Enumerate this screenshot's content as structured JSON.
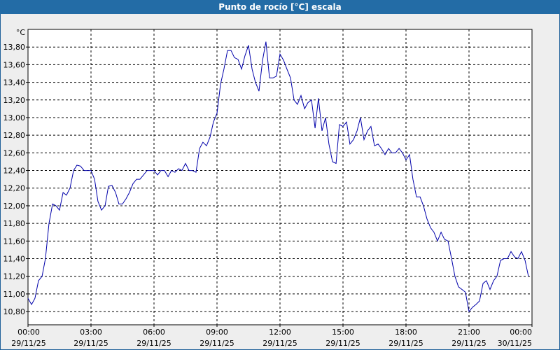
{
  "window": {
    "title": "Punto de rocío [°C] escala"
  },
  "colors": {
    "title_bar": "#236ca6",
    "line": "#0000aa",
    "grid": "#000000",
    "background": "#eeeeee"
  },
  "chart_data": {
    "type": "line",
    "title": "Punto de rocío [°C] escala",
    "ylabel": "°C",
    "xlabel": "",
    "grid": true,
    "ylim": [
      10.65,
      14.0
    ],
    "xlim": [
      0,
      24
    ],
    "y_ticks": [
      "10,80",
      "11,00",
      "11,20",
      "11,40",
      "11,60",
      "11,80",
      "12,00",
      "12,20",
      "12,40",
      "12,60",
      "12,80",
      "13,00",
      "13,20",
      "13,40",
      "13,60",
      "13,80"
    ],
    "x_ticks": [
      {
        "time": "00:00",
        "date": "29/11/25",
        "h": 0
      },
      {
        "time": "03:00",
        "date": "29/11/25",
        "h": 3
      },
      {
        "time": "06:00",
        "date": "29/11/25",
        "h": 6
      },
      {
        "time": "09:00",
        "date": "29/11/25",
        "h": 9
      },
      {
        "time": "12:00",
        "date": "29/11/25",
        "h": 12
      },
      {
        "time": "15:00",
        "date": "29/11/25",
        "h": 15
      },
      {
        "time": "18:00",
        "date": "29/11/25",
        "h": 18
      },
      {
        "time": "21:00",
        "date": "29/11/25",
        "h": 21
      },
      {
        "time": "00:00",
        "date": "30/11/25",
        "h": 24
      }
    ],
    "series": [
      {
        "values": [
          [
            0.0,
            10.95
          ],
          [
            0.17,
            10.88
          ],
          [
            0.33,
            10.95
          ],
          [
            0.5,
            11.15
          ],
          [
            0.67,
            11.2
          ],
          [
            0.83,
            11.4
          ],
          [
            1.0,
            11.8
          ],
          [
            1.17,
            12.02
          ],
          [
            1.33,
            12.0
          ],
          [
            1.5,
            11.95
          ],
          [
            1.67,
            12.15
          ],
          [
            1.83,
            12.12
          ],
          [
            2.0,
            12.2
          ],
          [
            2.17,
            12.4
          ],
          [
            2.33,
            12.46
          ],
          [
            2.5,
            12.45
          ],
          [
            2.67,
            12.4
          ],
          [
            2.83,
            12.4
          ],
          [
            3.0,
            12.4
          ],
          [
            3.17,
            12.3
          ],
          [
            3.33,
            12.05
          ],
          [
            3.5,
            11.95
          ],
          [
            3.67,
            12.0
          ],
          [
            3.83,
            12.22
          ],
          [
            4.0,
            12.23
          ],
          [
            4.17,
            12.15
          ],
          [
            4.33,
            12.02
          ],
          [
            4.5,
            12.02
          ],
          [
            4.67,
            12.08
          ],
          [
            4.83,
            12.15
          ],
          [
            5.0,
            12.25
          ],
          [
            5.17,
            12.3
          ],
          [
            5.33,
            12.3
          ],
          [
            5.5,
            12.35
          ],
          [
            5.67,
            12.4
          ],
          [
            5.83,
            12.4
          ],
          [
            6.0,
            12.4
          ],
          [
            6.17,
            12.35
          ],
          [
            6.33,
            12.4
          ],
          [
            6.5,
            12.4
          ],
          [
            6.67,
            12.33
          ],
          [
            6.83,
            12.4
          ],
          [
            7.0,
            12.38
          ],
          [
            7.17,
            12.42
          ],
          [
            7.33,
            12.4
          ],
          [
            7.5,
            12.48
          ],
          [
            7.67,
            12.4
          ],
          [
            7.83,
            12.4
          ],
          [
            8.0,
            12.38
          ],
          [
            8.17,
            12.65
          ],
          [
            8.33,
            12.72
          ],
          [
            8.5,
            12.68
          ],
          [
            8.67,
            12.78
          ],
          [
            8.83,
            12.95
          ],
          [
            9.0,
            13.05
          ],
          [
            9.17,
            13.38
          ],
          [
            9.33,
            13.55
          ],
          [
            9.5,
            13.76
          ],
          [
            9.67,
            13.76
          ],
          [
            9.83,
            13.68
          ],
          [
            10.0,
            13.66
          ],
          [
            10.17,
            13.55
          ],
          [
            10.33,
            13.7
          ],
          [
            10.5,
            13.82
          ],
          [
            10.67,
            13.55
          ],
          [
            10.83,
            13.4
          ],
          [
            11.0,
            13.3
          ],
          [
            11.17,
            13.65
          ],
          [
            11.33,
            13.86
          ],
          [
            11.5,
            13.45
          ],
          [
            11.67,
            13.45
          ],
          [
            11.83,
            13.47
          ],
          [
            12.0,
            13.72
          ],
          [
            12.17,
            13.65
          ],
          [
            12.33,
            13.55
          ],
          [
            12.5,
            13.45
          ],
          [
            12.67,
            13.2
          ],
          [
            12.83,
            13.15
          ],
          [
            13.0,
            13.25
          ],
          [
            13.17,
            13.1
          ],
          [
            13.33,
            13.17
          ],
          [
            13.5,
            13.2
          ],
          [
            13.67,
            12.88
          ],
          [
            13.83,
            13.22
          ],
          [
            14.0,
            12.85
          ],
          [
            14.17,
            13.0
          ],
          [
            14.33,
            12.7
          ],
          [
            14.5,
            12.5
          ],
          [
            14.67,
            12.48
          ],
          [
            14.83,
            12.92
          ],
          [
            15.0,
            12.9
          ],
          [
            15.17,
            12.95
          ],
          [
            15.33,
            12.7
          ],
          [
            15.5,
            12.75
          ],
          [
            15.67,
            12.85
          ],
          [
            15.83,
            13.0
          ],
          [
            16.0,
            12.75
          ],
          [
            16.17,
            12.85
          ],
          [
            16.33,
            12.9
          ],
          [
            16.5,
            12.68
          ],
          [
            16.67,
            12.7
          ],
          [
            16.83,
            12.65
          ],
          [
            17.0,
            12.58
          ],
          [
            17.17,
            12.65
          ],
          [
            17.33,
            12.6
          ],
          [
            17.5,
            12.6
          ],
          [
            17.67,
            12.65
          ],
          [
            17.83,
            12.6
          ],
          [
            18.0,
            12.52
          ],
          [
            18.17,
            12.58
          ],
          [
            18.33,
            12.3
          ],
          [
            18.5,
            12.1
          ],
          [
            18.67,
            12.1
          ],
          [
            18.83,
            12.0
          ],
          [
            19.0,
            11.85
          ],
          [
            19.17,
            11.75
          ],
          [
            19.33,
            11.7
          ],
          [
            19.5,
            11.6
          ],
          [
            19.67,
            11.7
          ],
          [
            19.83,
            11.62
          ],
          [
            20.0,
            11.6
          ],
          [
            20.17,
            11.4
          ],
          [
            20.33,
            11.2
          ],
          [
            20.5,
            11.08
          ],
          [
            20.67,
            11.05
          ],
          [
            20.83,
            11.02
          ],
          [
            21.0,
            10.8
          ],
          [
            21.17,
            10.85
          ],
          [
            21.33,
            10.88
          ],
          [
            21.5,
            10.92
          ],
          [
            21.67,
            11.12
          ],
          [
            21.83,
            11.15
          ],
          [
            22.0,
            11.05
          ],
          [
            22.17,
            11.15
          ],
          [
            22.33,
            11.2
          ],
          [
            22.5,
            11.38
          ],
          [
            22.67,
            11.4
          ],
          [
            22.83,
            11.4
          ],
          [
            23.0,
            11.48
          ],
          [
            23.17,
            11.42
          ],
          [
            23.33,
            11.4
          ],
          [
            23.5,
            11.48
          ],
          [
            23.67,
            11.38
          ],
          [
            23.83,
            11.2
          ]
        ]
      }
    ]
  }
}
